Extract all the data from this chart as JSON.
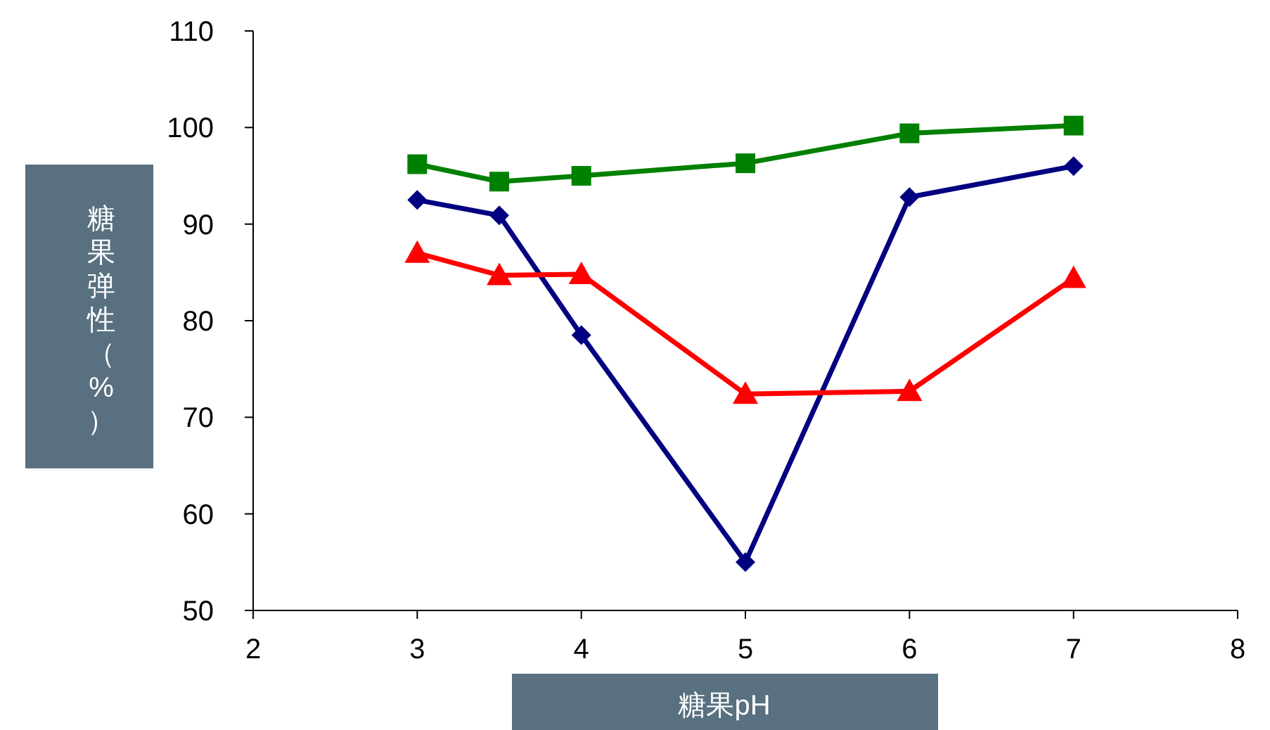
{
  "chart_data": {
    "type": "line",
    "xlabel": "糖果pH",
    "ylabel": "糖果弹性（%）",
    "xlim": [
      2,
      8
    ],
    "xticks": [
      2,
      3,
      4,
      5,
      6,
      7,
      8
    ],
    "ylim": [
      50,
      110
    ],
    "yticks": [
      50,
      60,
      70,
      80,
      90,
      100,
      110
    ],
    "grid": false,
    "line_style": "solid",
    "series": [
      {
        "color": "#000080",
        "marker": "diamond",
        "x": [
          3,
          3.5,
          4,
          5,
          6,
          7
        ],
        "values": [
          92.5,
          90.9,
          78.5,
          55.0,
          92.8,
          96.0
        ]
      },
      {
        "color": "#ff0000",
        "marker": "triangle",
        "x": [
          3,
          3.5,
          4,
          5,
          6,
          7
        ],
        "values": [
          87.0,
          84.7,
          84.8,
          72.4,
          72.7,
          84.4
        ]
      },
      {
        "color": "#008000",
        "marker": "square",
        "x": [
          3,
          3.5,
          4,
          5,
          6,
          7
        ],
        "values": [
          96.2,
          94.4,
          95.0,
          96.3,
          99.4,
          100.2
        ]
      }
    ]
  }
}
